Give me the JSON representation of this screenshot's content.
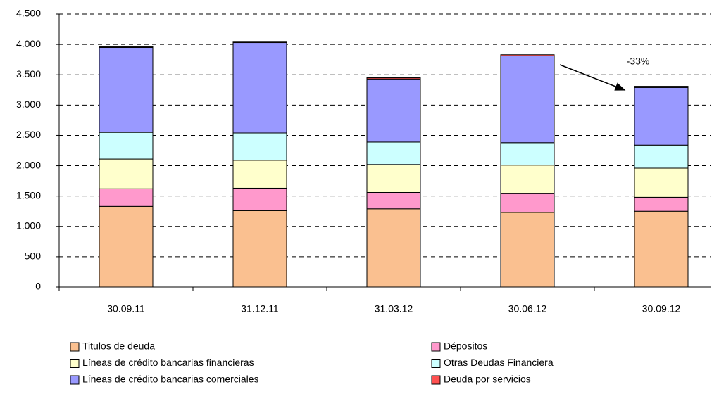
{
  "chart_data": {
    "type": "bar",
    "stacked": true,
    "categories": [
      "30.09.11",
      "31.12.11",
      "31.03.12",
      "30.06.12",
      "30.09.12"
    ],
    "series": [
      {
        "name": "Titulos de deuda",
        "color": "#fac090",
        "values": [
          1330,
          1260,
          1290,
          1230,
          1250
        ]
      },
      {
        "name": "Dépositos",
        "color": "#ff99cc",
        "values": [
          290,
          370,
          270,
          310,
          230
        ]
      },
      {
        "name": "Líneas de crédito bancarias financieras",
        "color": "#ffffcc",
        "values": [
          490,
          460,
          460,
          470,
          480
        ]
      },
      {
        "name": "Otras Deudas Financiera",
        "color": "#ccffff",
        "values": [
          440,
          450,
          370,
          370,
          380
        ]
      },
      {
        "name": "Líneas de crédito bancarias comerciales",
        "color": "#9999ff",
        "values": [
          1400,
          1490,
          1040,
          1430,
          950
        ]
      },
      {
        "name": "Deuda por servicios",
        "color": "#ff5050",
        "values": [
          10,
          20,
          20,
          20,
          20
        ]
      }
    ],
    "ylim": [
      0,
      4500
    ],
    "yticks": [
      0,
      500,
      {
        "value": 1000,
        "label": "1.000"
      },
      {
        "value": 1500,
        "label": "1.500"
      },
      {
        "value": 2000,
        "label": "2.000"
      },
      {
        "value": 2500,
        "label": "2.500"
      },
      {
        "value": 3000,
        "label": "3.000"
      },
      {
        "value": 3500,
        "label": "3.500"
      },
      {
        "value": 4000,
        "label": "4.000"
      },
      {
        "value": 4500,
        "label": "4.500"
      }
    ],
    "grid": true,
    "legend": "bottom",
    "annotation": "-33%"
  }
}
